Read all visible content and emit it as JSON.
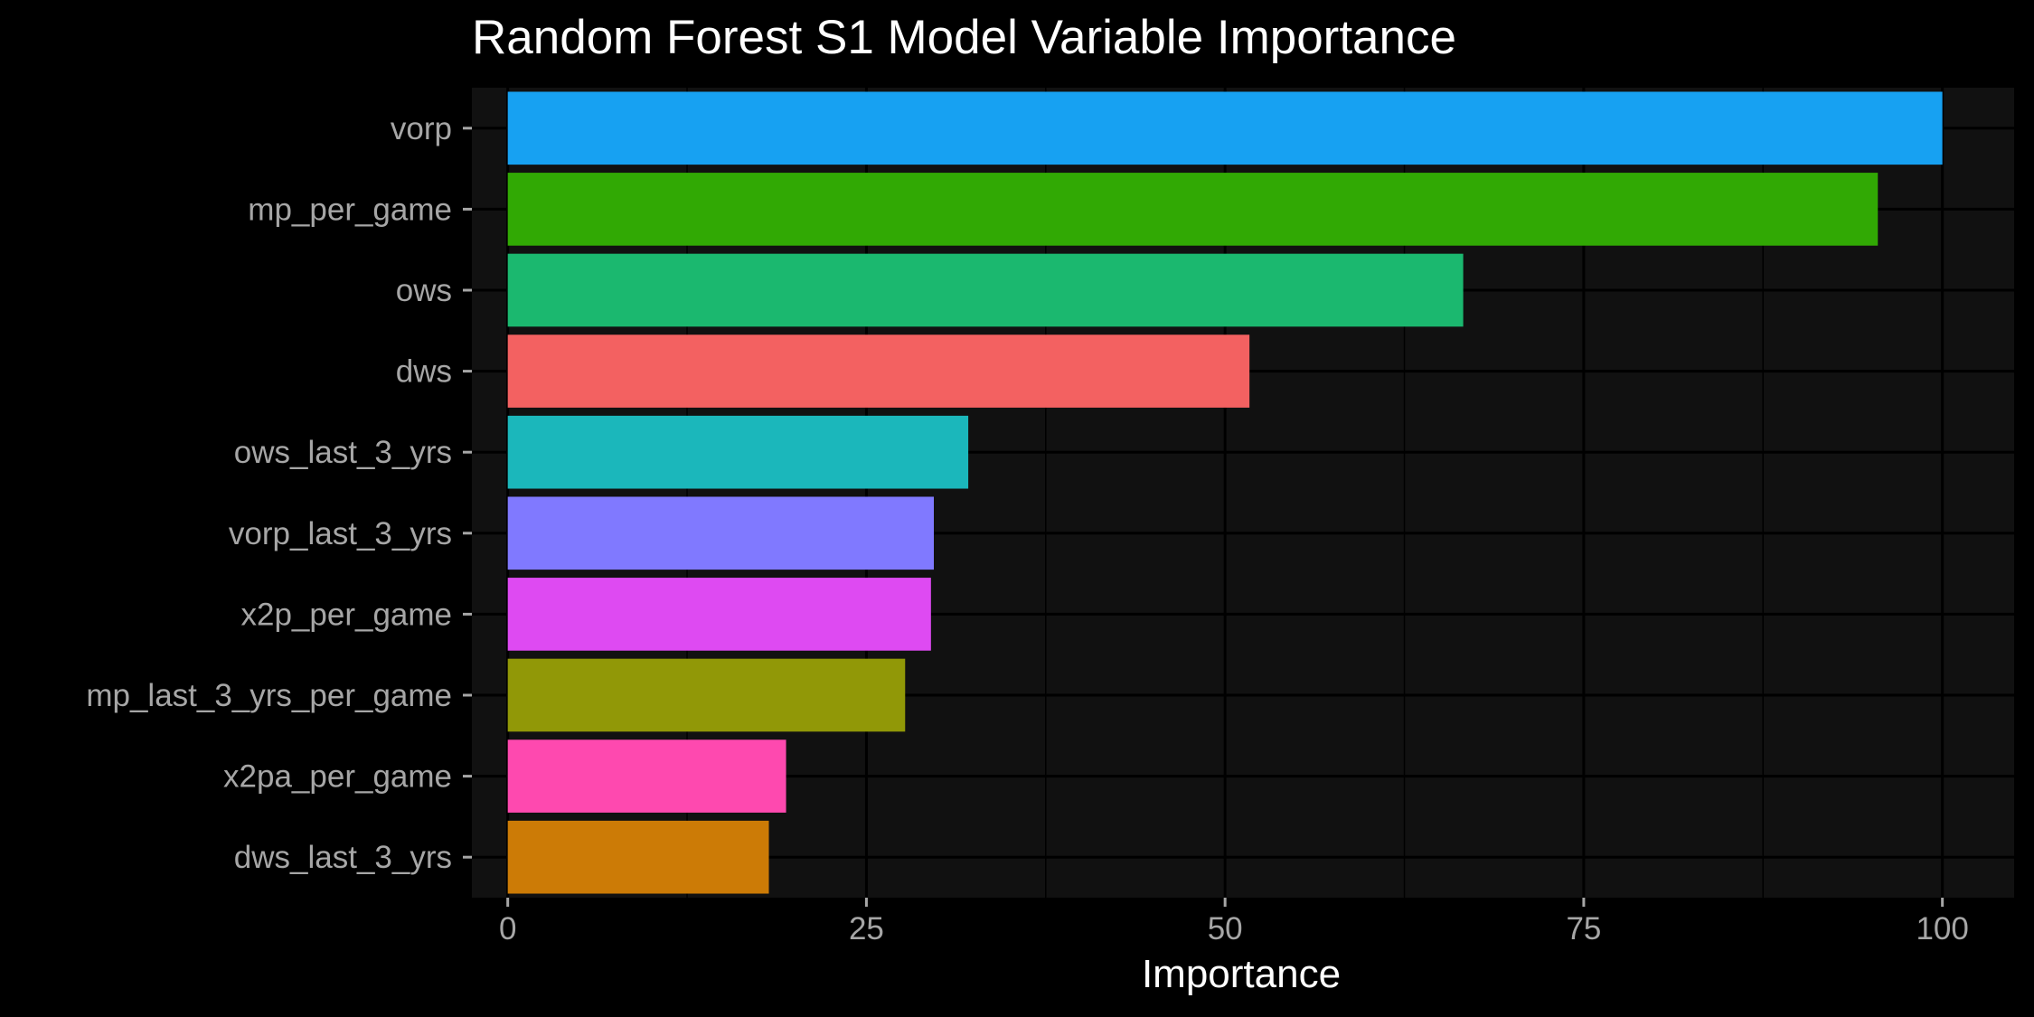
{
  "chart_data": {
    "type": "bar",
    "orientation": "horizontal",
    "title": "Random Forest S1 Model Variable Importance",
    "xlabel": "Importance",
    "ylabel": "",
    "xlim": [
      -2.5,
      105
    ],
    "x_ticks": [
      0,
      25,
      50,
      75,
      100
    ],
    "x_tick_labels": [
      "0",
      "25",
      "50",
      "75",
      "100"
    ],
    "grid": true,
    "legend": "none",
    "background": "#000000",
    "panel_background": "#111111",
    "grid_color": "#000000",
    "categories": [
      "vorp",
      "mp_per_game",
      "ows",
      "dws",
      "ows_last_3_yrs",
      "vorp_last_3_yrs",
      "x2p_per_game",
      "mp_last_3_yrs_per_game",
      "x2pa_per_game",
      "dws_last_3_yrs"
    ],
    "values": [
      100,
      95.5,
      66.6,
      51.7,
      32.1,
      29.7,
      29.5,
      27.7,
      19.4,
      18.2
    ],
    "colors": [
      "#17a1f2",
      "#31a904",
      "#1bb86f",
      "#f36161",
      "#1bb7bb",
      "#8079ff",
      "#de4af2",
      "#919807",
      "#fe49af",
      "#cc7b06"
    ]
  }
}
